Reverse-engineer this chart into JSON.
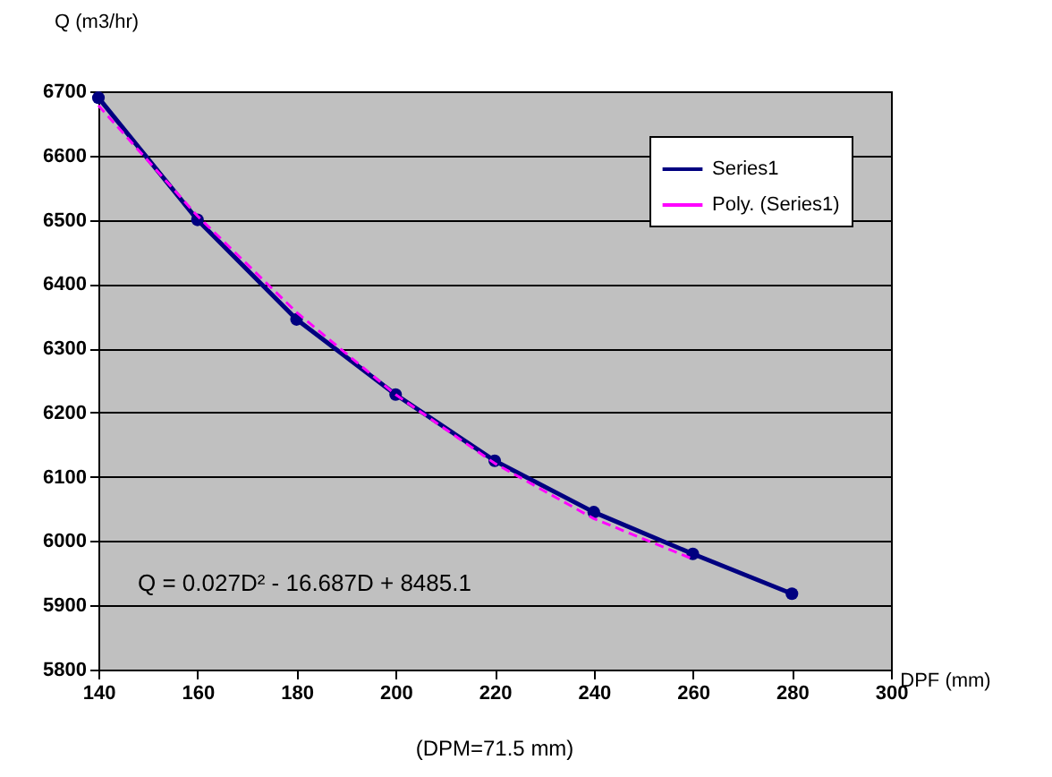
{
  "chart_data": {
    "type": "line",
    "xlabel": "DPF (mm)",
    "ylabel": "Q (m3/hr)",
    "x": [
      140,
      160,
      180,
      200,
      220,
      240,
      260,
      280
    ],
    "series": [
      {
        "name": "Series1",
        "color": "#000080",
        "values": [
          6690,
          6500,
          6345,
          6228,
          6125,
          6045,
          5980,
          5918
        ],
        "marker": "circle",
        "line_style": "solid"
      },
      {
        "name": "Poly. (Series1)",
        "color": "#ff00ff",
        "type": "line",
        "x": [
          140,
          160,
          180,
          200,
          220,
          240,
          260
        ],
        "values": [
          6678,
          6506,
          6356,
          6228,
          6121,
          6035,
          5972
        ],
        "marker": "none",
        "line_style": "dashed"
      }
    ],
    "xlim": [
      140,
      300
    ],
    "xticks": [
      140,
      160,
      180,
      200,
      220,
      240,
      260,
      280,
      300
    ],
    "ylim": [
      5800,
      6700
    ],
    "yticks": [
      5800,
      5900,
      6000,
      6100,
      6200,
      6300,
      6400,
      6500,
      6600,
      6700
    ],
    "grid": "y",
    "legend": "top right",
    "annotations": [
      "Q = 0.027D² - 16.687D + 8485.1",
      "(DPM=71.5 mm)"
    ]
  }
}
